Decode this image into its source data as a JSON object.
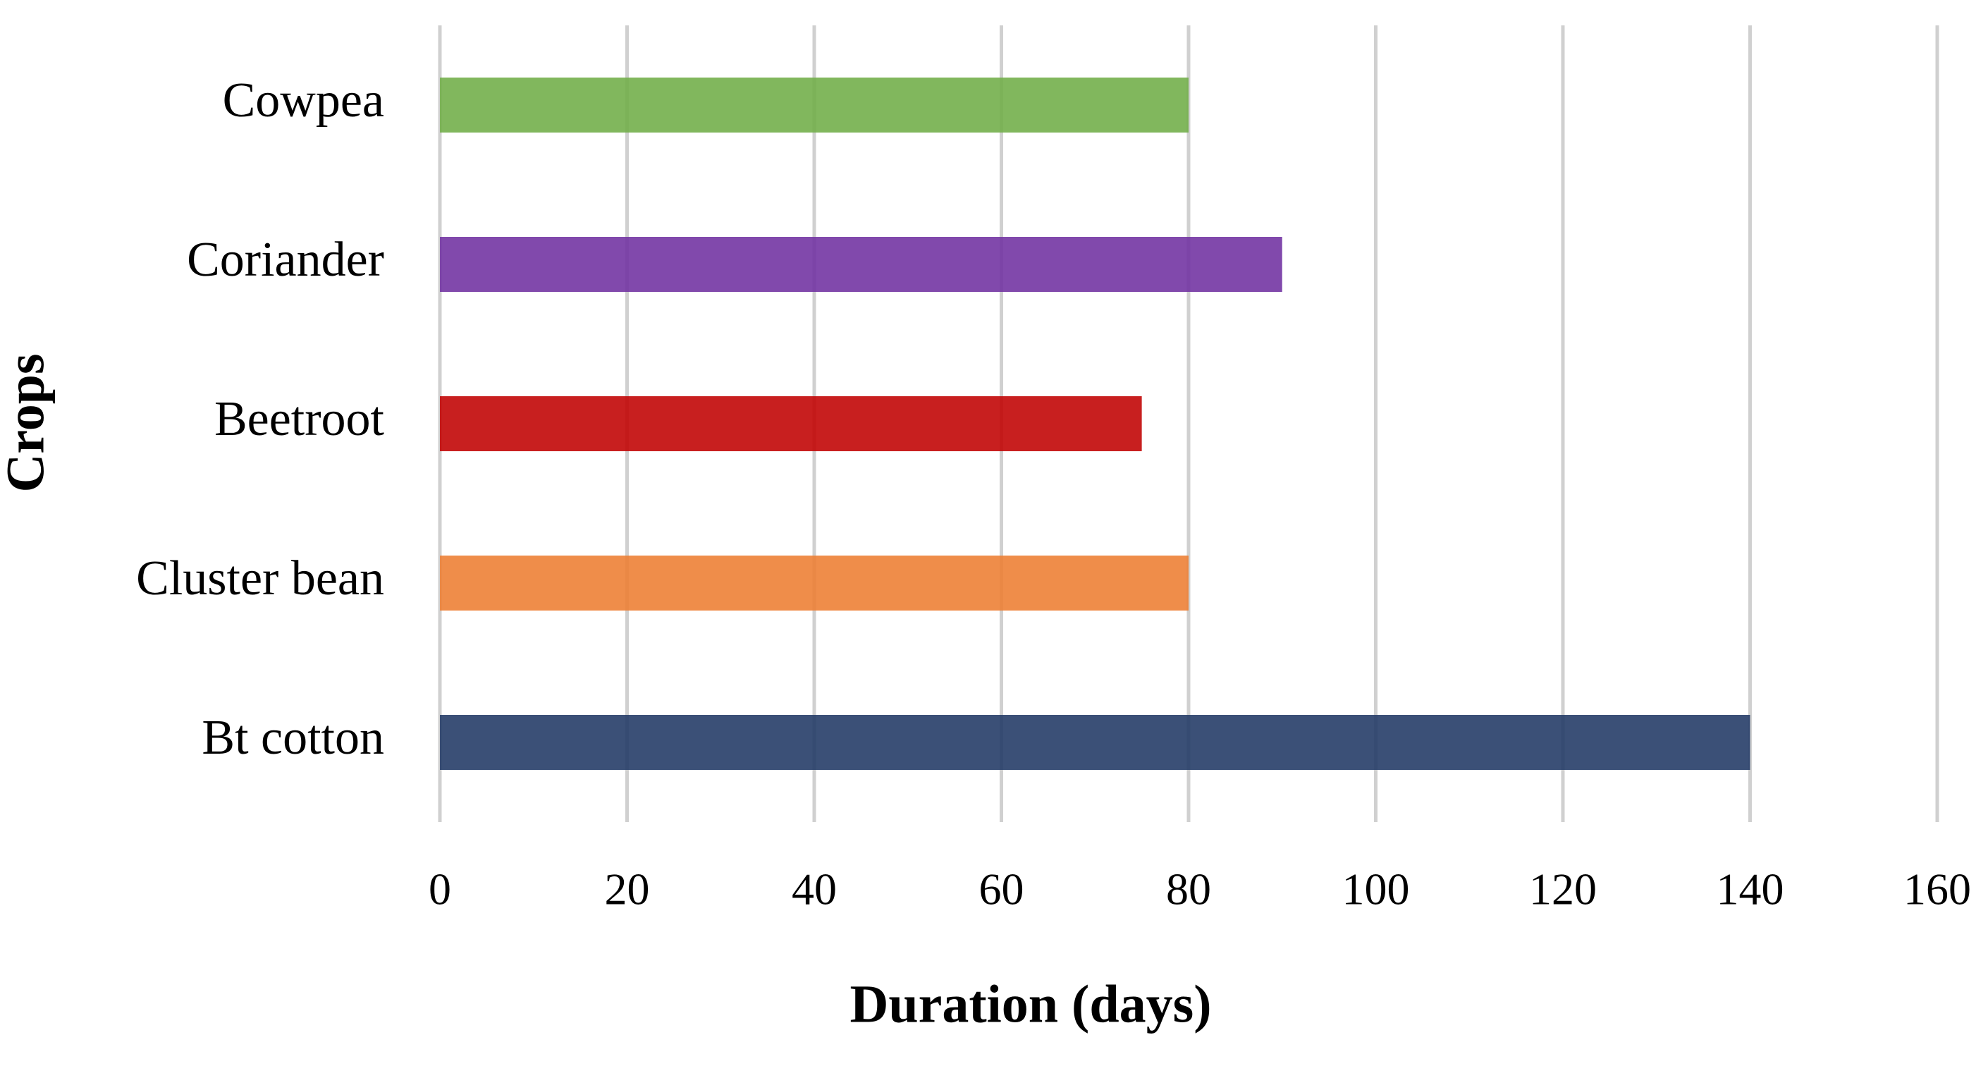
{
  "chart_data": {
    "type": "hbar",
    "categories": [
      "Cowpea",
      "Coriander",
      "Beetroot",
      "Cluster bean",
      "Bt cotton"
    ],
    "values": [
      80,
      90,
      75,
      80,
      140
    ],
    "colors": [
      "#70ad47",
      "#7030a0",
      "#c00000",
      "#ed7d31",
      "#203864"
    ],
    "xlabel": "Duration (days)",
    "ylabel": "Crops",
    "xlim": [
      0,
      160
    ],
    "xticks": [
      0,
      20,
      40,
      60,
      80,
      100,
      120,
      140,
      160
    ],
    "grid": true
  }
}
